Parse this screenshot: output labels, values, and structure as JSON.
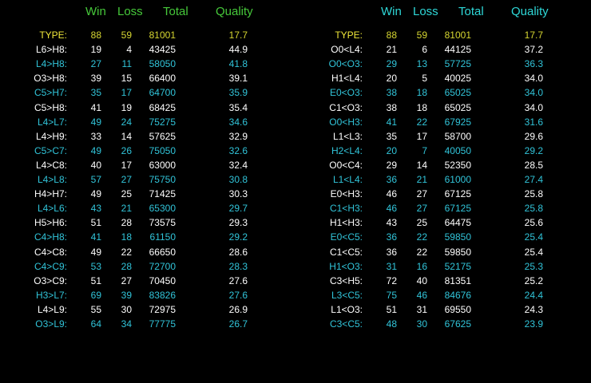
{
  "colors": {
    "background": "#000000",
    "header_left": "#46c83a",
    "header_right": "#2ed7d7",
    "row_white": "#ffffff",
    "row_cyan": "#31c4d9",
    "type_row": "#d6d631"
  },
  "left": {
    "headers": {
      "win": "Win",
      "loss": "Loss",
      "total": "Total",
      "quality": "Quality"
    },
    "rows": [
      {
        "label": "TYPE:",
        "win": "88",
        "loss": "59",
        "total": "81001",
        "quality": "17.7",
        "style": "yellow"
      },
      {
        "label": "L6>H8:",
        "win": "19",
        "loss": "4",
        "total": "43425",
        "quality": "44.9",
        "style": "white"
      },
      {
        "label": "L4>H8:",
        "win": "27",
        "loss": "11",
        "total": "58050",
        "quality": "41.8",
        "style": "cyan"
      },
      {
        "label": "O3>H8:",
        "win": "39",
        "loss": "15",
        "total": "66400",
        "quality": "39.1",
        "style": "white"
      },
      {
        "label": "C5>H7:",
        "win": "35",
        "loss": "17",
        "total": "64700",
        "quality": "35.9",
        "style": "cyan"
      },
      {
        "label": "C5>H8:",
        "win": "41",
        "loss": "19",
        "total": "68425",
        "quality": "35.4",
        "style": "white"
      },
      {
        "label": "L4>L7:",
        "win": "49",
        "loss": "24",
        "total": "75275",
        "quality": "34.6",
        "style": "cyan"
      },
      {
        "label": "L4>H9:",
        "win": "33",
        "loss": "14",
        "total": "57625",
        "quality": "32.9",
        "style": "white"
      },
      {
        "label": "C5>C7:",
        "win": "49",
        "loss": "26",
        "total": "75050",
        "quality": "32.6",
        "style": "cyan"
      },
      {
        "label": "L4>C8:",
        "win": "40",
        "loss": "17",
        "total": "63000",
        "quality": "32.4",
        "style": "white"
      },
      {
        "label": "L4>L8:",
        "win": "57",
        "loss": "27",
        "total": "75750",
        "quality": "30.8",
        "style": "cyan"
      },
      {
        "label": "H4>H7:",
        "win": "49",
        "loss": "25",
        "total": "71425",
        "quality": "30.3",
        "style": "white"
      },
      {
        "label": "L4>L6:",
        "win": "43",
        "loss": "21",
        "total": "65300",
        "quality": "29.7",
        "style": "cyan"
      },
      {
        "label": "H5>H6:",
        "win": "51",
        "loss": "28",
        "total": "73575",
        "quality": "29.3",
        "style": "white"
      },
      {
        "label": "C4>H8:",
        "win": "41",
        "loss": "18",
        "total": "61150",
        "quality": "29.2",
        "style": "cyan"
      },
      {
        "label": "C4>C8:",
        "win": "49",
        "loss": "22",
        "total": "66650",
        "quality": "28.6",
        "style": "white"
      },
      {
        "label": "C4>C9:",
        "win": "53",
        "loss": "28",
        "total": "72700",
        "quality": "28.3",
        "style": "cyan"
      },
      {
        "label": "O3>C9:",
        "win": "51",
        "loss": "27",
        "total": "70450",
        "quality": "27.6",
        "style": "white"
      },
      {
        "label": "H3>L7:",
        "win": "69",
        "loss": "39",
        "total": "83826",
        "quality": "27.6",
        "style": "cyan"
      },
      {
        "label": "L4>L9:",
        "win": "55",
        "loss": "30",
        "total": "72975",
        "quality": "26.9",
        "style": "white"
      },
      {
        "label": "O3>L9:",
        "win": "64",
        "loss": "34",
        "total": "77775",
        "quality": "26.7",
        "style": "cyan"
      }
    ]
  },
  "right": {
    "headers": {
      "win": "Win",
      "loss": "Loss",
      "total": "Total",
      "quality": "Quality"
    },
    "rows": [
      {
        "label": "TYPE:",
        "win": "88",
        "loss": "59",
        "total": "81001",
        "quality": "17.7",
        "style": "yellow"
      },
      {
        "label": "O0<L4:",
        "win": "21",
        "loss": "6",
        "total": "44125",
        "quality": "37.2",
        "style": "white"
      },
      {
        "label": "O0<O3:",
        "win": "29",
        "loss": "13",
        "total": "57725",
        "quality": "36.3",
        "style": "cyan"
      },
      {
        "label": "H1<L4:",
        "win": "20",
        "loss": "5",
        "total": "40025",
        "quality": "34.0",
        "style": "white"
      },
      {
        "label": "E0<O3:",
        "win": "38",
        "loss": "18",
        "total": "65025",
        "quality": "34.0",
        "style": "cyan"
      },
      {
        "label": "C1<O3:",
        "win": "38",
        "loss": "18",
        "total": "65025",
        "quality": "34.0",
        "style": "white"
      },
      {
        "label": "O0<H3:",
        "win": "41",
        "loss": "22",
        "total": "67925",
        "quality": "31.6",
        "style": "cyan"
      },
      {
        "label": "L1<L3:",
        "win": "35",
        "loss": "17",
        "total": "58700",
        "quality": "29.6",
        "style": "white"
      },
      {
        "label": "H2<L4:",
        "win": "20",
        "loss": "7",
        "total": "40050",
        "quality": "29.2",
        "style": "cyan"
      },
      {
        "label": "O0<C4:",
        "win": "29",
        "loss": "14",
        "total": "52350",
        "quality": "28.5",
        "style": "white"
      },
      {
        "label": "L1<L4:",
        "win": "36",
        "loss": "21",
        "total": "61000",
        "quality": "27.4",
        "style": "cyan"
      },
      {
        "label": "E0<H3:",
        "win": "46",
        "loss": "27",
        "total": "67125",
        "quality": "25.8",
        "style": "white"
      },
      {
        "label": "C1<H3:",
        "win": "46",
        "loss": "27",
        "total": "67125",
        "quality": "25.8",
        "style": "cyan"
      },
      {
        "label": "H1<H3:",
        "win": "43",
        "loss": "25",
        "total": "64475",
        "quality": "25.6",
        "style": "white"
      },
      {
        "label": "E0<C5:",
        "win": "36",
        "loss": "22",
        "total": "59850",
        "quality": "25.4",
        "style": "cyan"
      },
      {
        "label": "C1<C5:",
        "win": "36",
        "loss": "22",
        "total": "59850",
        "quality": "25.4",
        "style": "white"
      },
      {
        "label": "H1<O3:",
        "win": "31",
        "loss": "16",
        "total": "52175",
        "quality": "25.3",
        "style": "cyan"
      },
      {
        "label": "C3<H5:",
        "win": "72",
        "loss": "40",
        "total": "81351",
        "quality": "25.2",
        "style": "white"
      },
      {
        "label": "L3<C5:",
        "win": "75",
        "loss": "46",
        "total": "84676",
        "quality": "24.4",
        "style": "cyan"
      },
      {
        "label": "L1<O3:",
        "win": "51",
        "loss": "31",
        "total": "69550",
        "quality": "24.3",
        "style": "white"
      },
      {
        "label": "C3<C5:",
        "win": "48",
        "loss": "30",
        "total": "67625",
        "quality": "23.9",
        "style": "cyan"
      }
    ]
  }
}
